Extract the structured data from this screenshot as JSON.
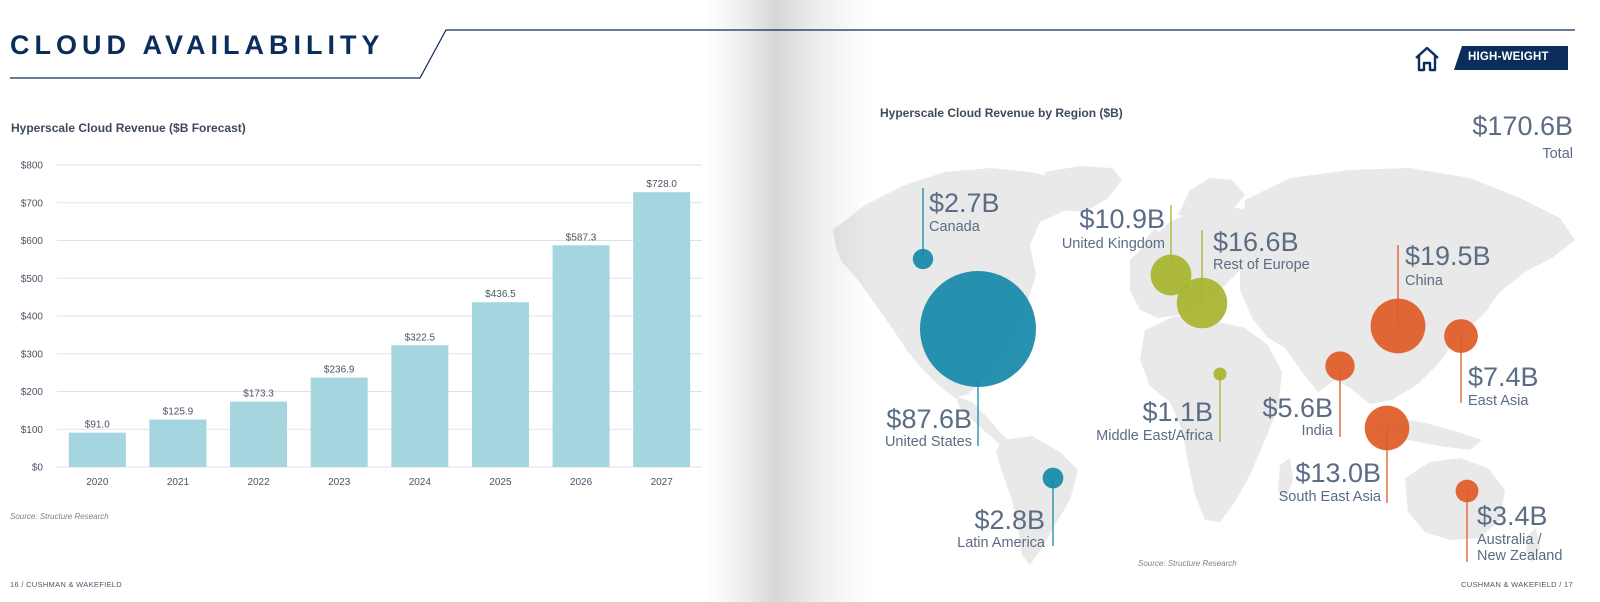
{
  "page_title": "CLOUD AVAILABILITY",
  "badge": {
    "label": "HIGH-WEIGHT",
    "icon": "home-icon"
  },
  "colors": {
    "navy": "#0b2d5b",
    "bar": "#a5d6df",
    "americas": "#1389a8",
    "europe": "#a7b42c",
    "asia": "#e05a25",
    "land": "#e9e9e9"
  },
  "chart_data": [
    {
      "type": "bar",
      "title": "Hyperscale Cloud Revenue ($B Forecast)",
      "categories": [
        "2020",
        "2021",
        "2022",
        "2023",
        "2024",
        "2025",
        "2026",
        "2027"
      ],
      "values": [
        91.0,
        125.9,
        173.3,
        236.9,
        322.5,
        436.5,
        587.3,
        728.0
      ],
      "value_labels": [
        "$91.0",
        "$125.9",
        "$173.3",
        "$236.9",
        "$322.5",
        "$436.5",
        "$587.3",
        "$728.0"
      ],
      "yticks": [
        "$0",
        "$100",
        "$200",
        "$300",
        "$400",
        "$500",
        "$600",
        "$700",
        "$800"
      ],
      "ylim": [
        0,
        800
      ],
      "grid": true,
      "source": "Source: Structure Research"
    },
    {
      "type": "bubble-map",
      "title": "Hyperscale Cloud Revenue by Region ($B)",
      "total_value": "$170.6B",
      "total_label": "Total",
      "regions": [
        {
          "name": "Canada",
          "label": "$2.7B",
          "value": 2.7,
          "group": "americas"
        },
        {
          "name": "United States",
          "label": "$87.6B",
          "value": 87.6,
          "group": "americas"
        },
        {
          "name": "Latin America",
          "label": "$2.8B",
          "value": 2.8,
          "group": "americas"
        },
        {
          "name": "United Kingdom",
          "label": "$10.9B",
          "value": 10.9,
          "group": "europe"
        },
        {
          "name": "Rest of Europe",
          "label": "$16.6B",
          "value": 16.6,
          "group": "europe"
        },
        {
          "name": "Middle East/Africa",
          "label": "$1.1B",
          "value": 1.1,
          "group": "europe"
        },
        {
          "name": "China",
          "label": "$19.5B",
          "value": 19.5,
          "group": "asia"
        },
        {
          "name": "East Asia",
          "label": "$7.4B",
          "value": 7.4,
          "group": "asia"
        },
        {
          "name": "India",
          "label": "$5.6B",
          "value": 5.6,
          "group": "asia"
        },
        {
          "name": "South East Asia",
          "label": "$13.0B",
          "value": 13.0,
          "group": "asia"
        },
        {
          "name": "Australia / New Zealand",
          "name_lines": [
            "Australia /",
            "New Zealand"
          ],
          "label": "$3.4B",
          "value": 3.4,
          "group": "asia"
        }
      ],
      "source": "Source: Structure Research"
    }
  ],
  "footer": {
    "left": "16 / CUSHMAN & WAKEFIELD",
    "right": "CUSHMAN & WAKEFIELD / 17"
  }
}
